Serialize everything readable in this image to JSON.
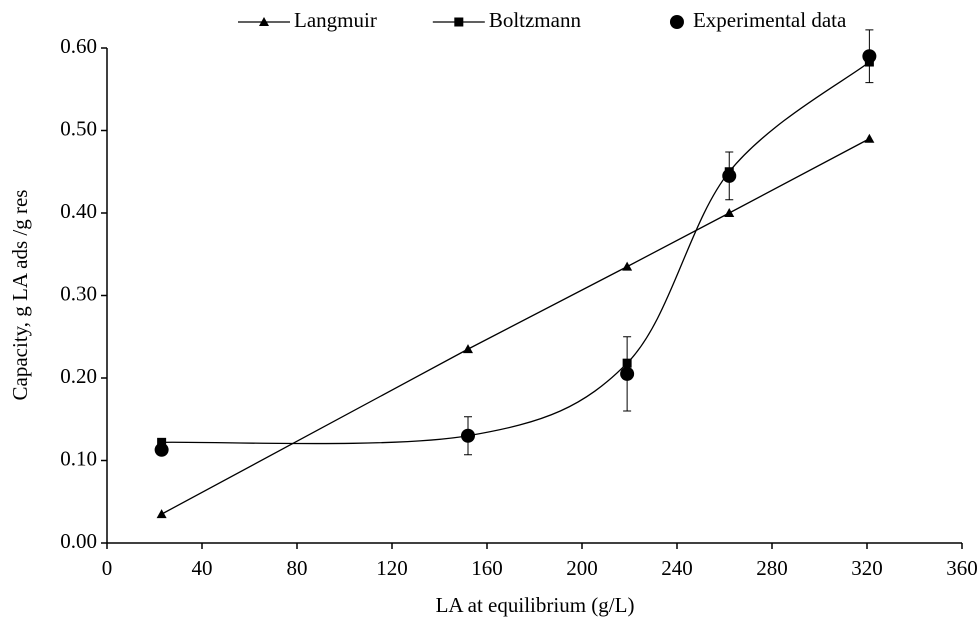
{
  "chart_data": {
    "type": "line",
    "x_label": "LA at equilibrium (g/L)",
    "y_label": "Capacity, g LA ads /g res",
    "x": [
      23,
      152,
      219,
      262,
      321
    ],
    "series": [
      {
        "name": "Langmuir",
        "color": "#000000",
        "marker": "triangle",
        "line": true,
        "smooth": false,
        "values": [
          0.035,
          0.235,
          0.335,
          0.4,
          0.49
        ]
      },
      {
        "name": "Boltzmann",
        "color": "#000000",
        "marker": "square",
        "line": true,
        "smooth": true,
        "values": [
          0.122,
          0.13,
          0.218,
          0.45,
          0.583
        ]
      },
      {
        "name": "Experimental data",
        "color": "#000000",
        "marker": "circle",
        "line": false,
        "smooth": false,
        "values": [
          0.113,
          0.13,
          0.205,
          0.445,
          0.59
        ],
        "errors": [
          0.005,
          0.023,
          0.045,
          0.029,
          0.032
        ]
      }
    ],
    "xlim": [
      0,
      360
    ],
    "xticks": [
      0,
      40,
      80,
      120,
      160,
      200,
      240,
      280,
      320,
      360
    ],
    "ylim": [
      0,
      0.6
    ],
    "yticks": [
      {
        "value": 0,
        "label": "0.00"
      },
      {
        "value": 0.1,
        "label": "0.10"
      },
      {
        "value": 0.2,
        "label": "0.20"
      },
      {
        "value": 0.3,
        "label": "0.30"
      },
      {
        "value": 0.4,
        "label": "0.40"
      },
      {
        "value": 0.5,
        "label": "0.50"
      },
      {
        "value": 0.6,
        "label": "0.60"
      }
    ],
    "grid": false,
    "legend": "top"
  }
}
